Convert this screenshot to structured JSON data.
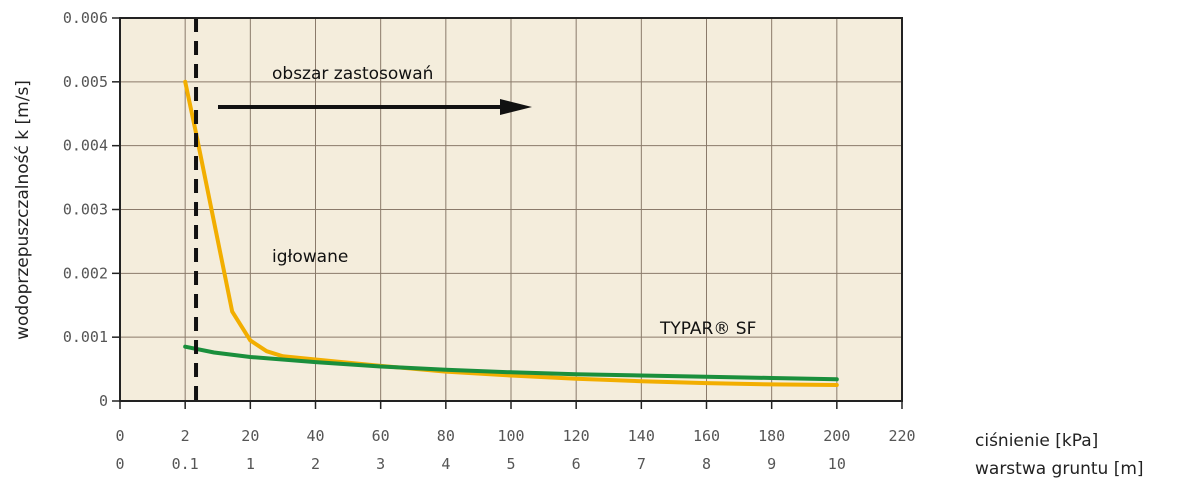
{
  "chart_data": {
    "type": "line",
    "ylabel": "wodoprzepuszczalność k [m/s]",
    "xlabel_primary": "ciśnienie [kPa]",
    "xlabel_secondary": "warstwa gruntu [m]",
    "ylim": [
      0,
      0.006
    ],
    "xlim": [
      0,
      220
    ],
    "y_ticks": [
      "0.006",
      "0.005",
      "0.004",
      "0.003",
      "0.002",
      "0.001",
      "0"
    ],
    "x_ticks_primary": [
      "0",
      "2",
      "20",
      "40",
      "60",
      "80",
      "100",
      "120",
      "140",
      "160",
      "180",
      "200",
      "220"
    ],
    "x_ticks_secondary": [
      "0",
      "0.1",
      "1",
      "2",
      "3",
      "4",
      "5",
      "6",
      "7",
      "8",
      "9",
      "10"
    ],
    "grid": true,
    "background_color": "#F4EDDC",
    "series": [
      {
        "name": "igłowane",
        "color": "#F2AE00",
        "x": [
          2,
          5,
          10,
          15,
          20,
          25,
          30,
          40,
          60,
          80,
          100,
          120,
          140,
          160,
          180,
          200
        ],
        "y": [
          0.005,
          0.0042,
          0.0028,
          0.0014,
          0.00095,
          0.00078,
          0.0007,
          0.00065,
          0.00055,
          0.00046,
          0.0004,
          0.00035,
          0.00031,
          0.00028,
          0.00026,
          0.00025
        ]
      },
      {
        "name": "TYPAR® SF",
        "color": "#1A8F3C",
        "x": [
          2,
          10,
          20,
          40,
          60,
          80,
          100,
          120,
          140,
          160,
          180,
          200
        ],
        "y": [
          0.00085,
          0.00076,
          0.00069,
          0.00061,
          0.00054,
          0.00049,
          0.00045,
          0.00042,
          0.0004,
          0.00038,
          0.00036,
          0.00034
        ]
      }
    ],
    "annotations": {
      "application_area": "obszar zastosowań",
      "limit_line_x": 5
    }
  }
}
